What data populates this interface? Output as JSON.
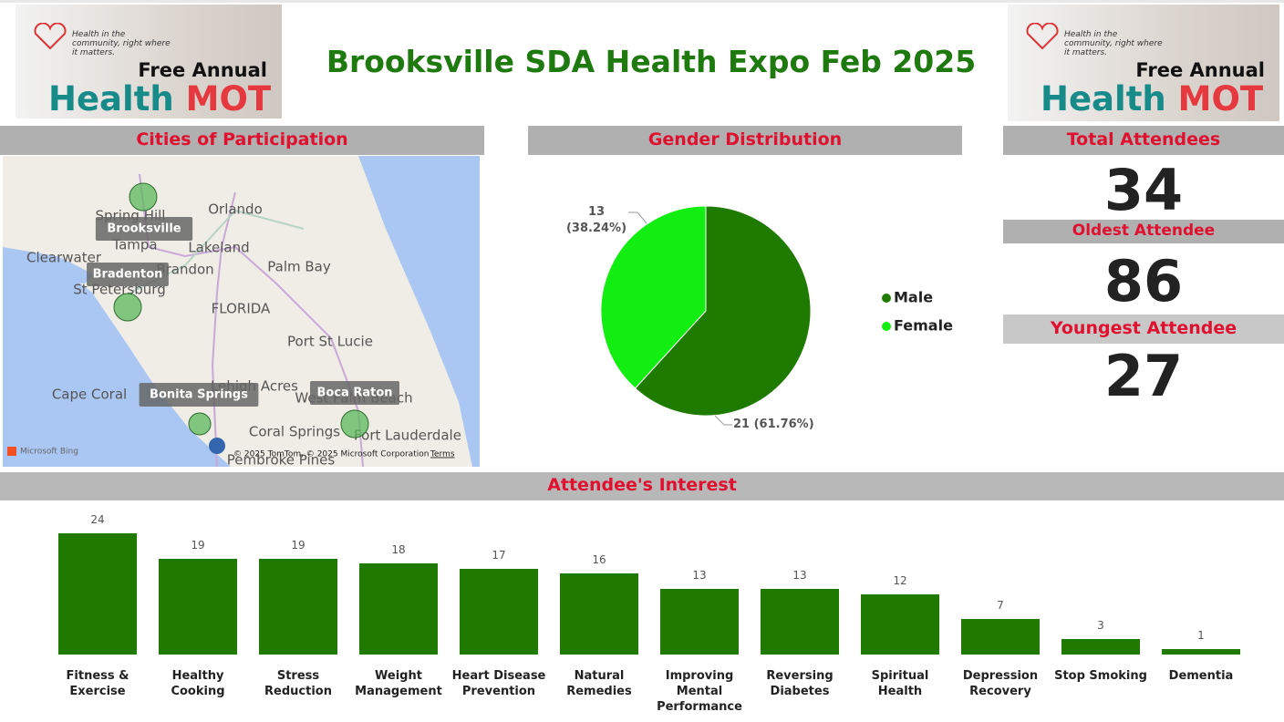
{
  "title": "Brooksville SDA Health Expo Feb 2025",
  "banner": {
    "tagline": "Health in the community, right where it matters.",
    "line1": "Free Annual",
    "health": "Health",
    "mot": "MOT"
  },
  "map": {
    "title": "Cities of Participation",
    "cities": [
      "Brooksville",
      "Bradenton",
      "Bonita Springs",
      "Boca Raton"
    ],
    "place_labels": [
      "Spring Hill",
      "Orlando",
      "Tampa",
      "Lakeland",
      "Clearwater",
      "Brandon",
      "Palm Bay",
      "St Petersburg",
      "FLORIDA",
      "Port St Lucie",
      "Cape Coral",
      "Lehigh Acres",
      "West Palm Beach",
      "Coral Springs",
      "Fort Lauderdale",
      "Pembroke Pines"
    ],
    "provider": "Microsoft Bing",
    "credits": "© 2025 TomTom, © 2025 Microsoft Corporation",
    "terms": "Terms"
  },
  "kpis": [
    {
      "title": "Total Attendees",
      "value": 34
    },
    {
      "title": "Oldest Attendee",
      "value": 86
    },
    {
      "title": "Youngest Attendee",
      "value": 27
    }
  ],
  "chart_data": [
    {
      "type": "pie",
      "title": "Gender Distribution",
      "categories": [
        "Male",
        "Female"
      ],
      "values": [
        21,
        13
      ],
      "value_labels": [
        "21 (61.76%)",
        "13 (38.24%)"
      ],
      "colors": [
        "#1f7a00",
        "#12ee12"
      ],
      "legend": "right"
    },
    {
      "type": "bar",
      "title": "Attendee's Interest",
      "categories": [
        "Fitness & Exercise",
        "Healthy Cooking",
        "Stress Reduction",
        "Weight Management",
        "Heart Disease Prevention",
        "Natural Remedies",
        "Improving Mental Performance",
        "Reversing Diabetes",
        "Spiritual Health",
        "Depression Recovery",
        "Stop Smoking",
        "Dementia"
      ],
      "values": [
        24,
        19,
        19,
        18,
        17,
        16,
        13,
        13,
        12,
        7,
        3,
        1
      ],
      "color": "#217a00",
      "data_labels": true
    }
  ]
}
